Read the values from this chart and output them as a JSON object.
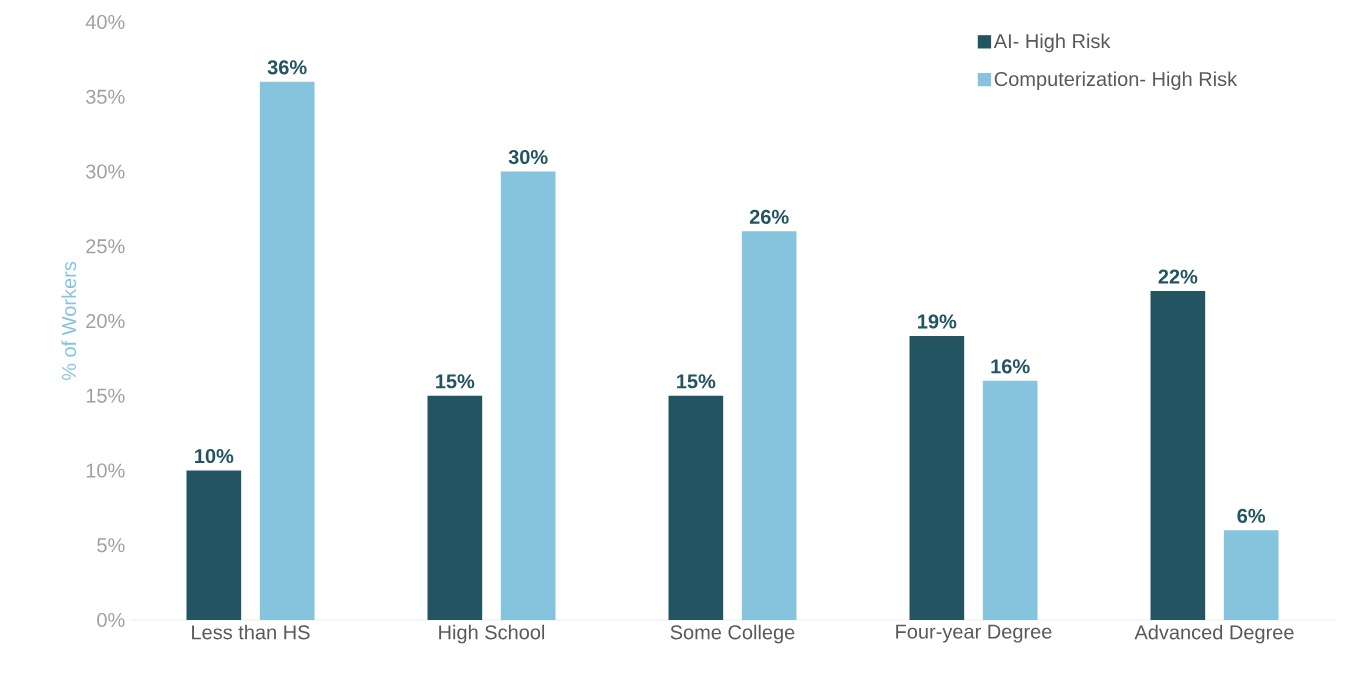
{
  "chart_data": {
    "type": "bar",
    "ylabel": "% of Workers",
    "categories": [
      "Less than HS",
      "High School",
      "Some College",
      "Four-year Degree",
      "Advanced Degree"
    ],
    "series": [
      {
        "name": "AI- High Risk",
        "color": "#235462",
        "values": [
          10,
          15,
          15,
          19,
          22
        ],
        "value_labels": [
          "10%",
          "15%",
          "15%",
          "19%",
          "22%"
        ]
      },
      {
        "name": "Computerization- High Risk",
        "color": "#85c4dc",
        "values": [
          36,
          30,
          26,
          16,
          6
        ],
        "value_labels": [
          "36%",
          "30%",
          "26%",
          "16%",
          "6%"
        ]
      }
    ],
    "ylim": [
      0,
      40
    ],
    "yticks": [
      {
        "value": 0,
        "label": "0%"
      },
      {
        "value": 5,
        "label": "5%"
      },
      {
        "value": 10,
        "label": "10%"
      },
      {
        "value": 15,
        "label": "15%"
      },
      {
        "value": 20,
        "label": "20%"
      },
      {
        "value": 25,
        "label": "25%"
      },
      {
        "value": 30,
        "label": "30%"
      },
      {
        "value": 35,
        "label": "35%"
      },
      {
        "value": 40,
        "label": "40%"
      }
    ],
    "legend": "top right"
  }
}
